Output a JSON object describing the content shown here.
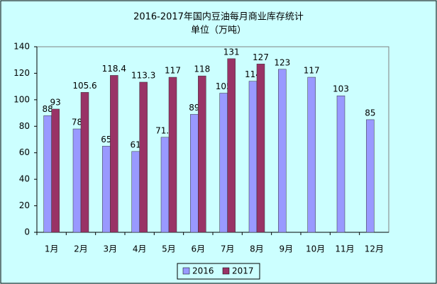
{
  "chart_data": {
    "type": "bar",
    "title": "2016-2017年国内豆油每月商业库存统计",
    "subtitle": "单位（万吨）",
    "categories": [
      "1月",
      "2月",
      "3月",
      "4月",
      "5月",
      "6月",
      "7月",
      "8月",
      "9月",
      "10月",
      "11月",
      "12月"
    ],
    "series": [
      {
        "name": "2016",
        "color": "#9999ff",
        "values": [
          88,
          78,
          65,
          61,
          71.7,
          89,
          105,
          114,
          123,
          117,
          103,
          85
        ]
      },
      {
        "name": "2017",
        "color": "#993366",
        "values": [
          93,
          105.6,
          118.4,
          113.3,
          117,
          118,
          131,
          127,
          null,
          null,
          null,
          null
        ]
      }
    ],
    "ylim": [
      0,
      140
    ],
    "yticks": [
      0,
      20,
      40,
      60,
      80,
      100,
      120,
      140
    ],
    "grid": false,
    "legend": "bottom"
  }
}
